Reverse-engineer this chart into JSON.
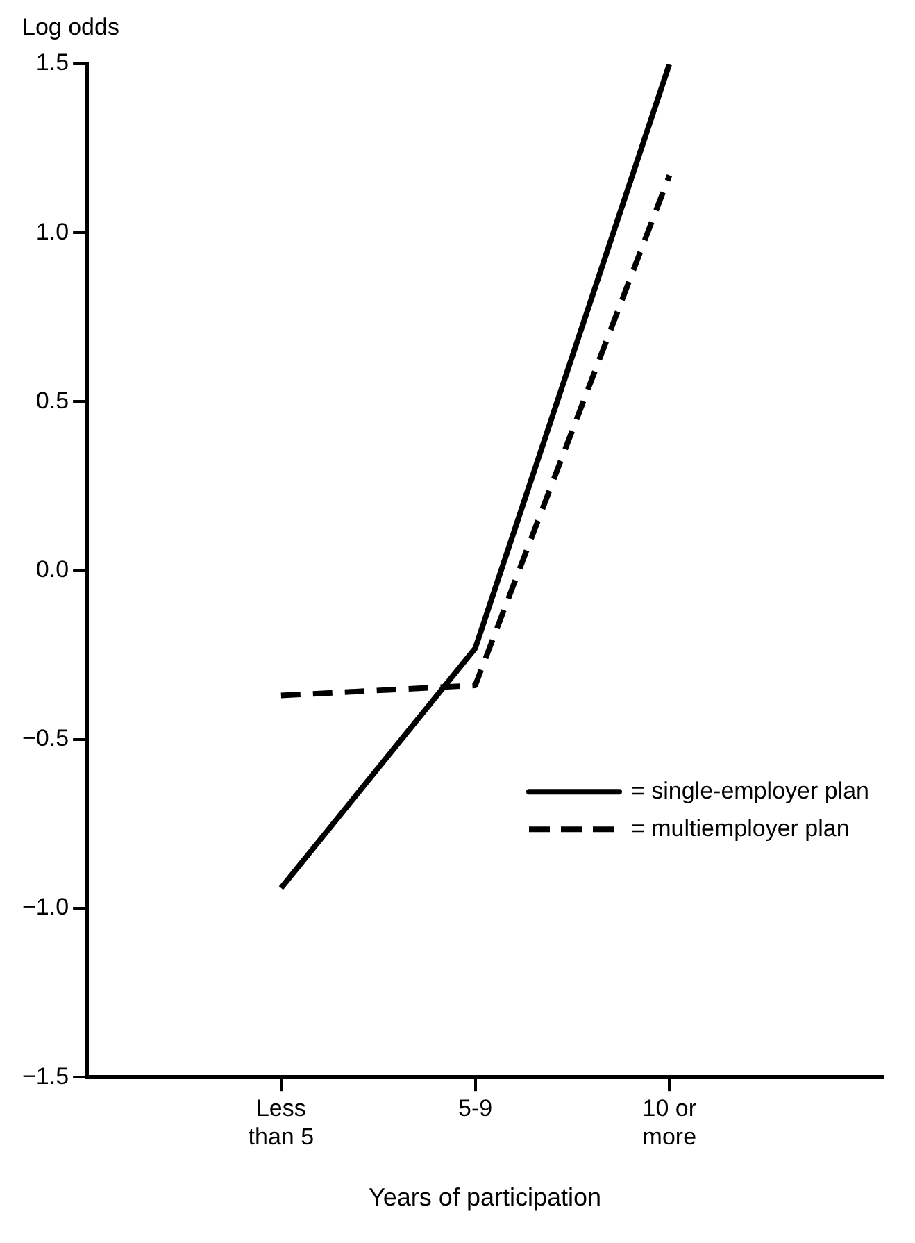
{
  "chart_data": {
    "type": "line",
    "ylabel": "Log odds",
    "xlabel": "Years of participation",
    "categories": [
      "Less than 5",
      "5-9",
      "10 or more"
    ],
    "series": [
      {
        "name": "= single-employer plan",
        "color": "#000000",
        "line_style": "solid",
        "values": [
          -0.94,
          -0.23,
          1.5
        ]
      },
      {
        "name": "= multiemployer plan",
        "color": "#000000",
        "line_style": "dashed",
        "values": [
          -0.37,
          -0.34,
          1.17
        ]
      }
    ],
    "ylim": [
      -1.5,
      1.5
    ],
    "yticks": [
      {
        "value": 1.5,
        "label": "1.5"
      },
      {
        "value": 1.0,
        "label": "1.0"
      },
      {
        "value": 0.5,
        "label": "0.5"
      },
      {
        "value": 0.0,
        "label": "0.0"
      },
      {
        "value": -0.5,
        "label": "−0.5"
      },
      {
        "value": -1.0,
        "label": "−1.0"
      },
      {
        "value": -1.5,
        "label": "−1.5"
      }
    ],
    "grid": false,
    "legend": "bottom right",
    "marker": "none"
  }
}
